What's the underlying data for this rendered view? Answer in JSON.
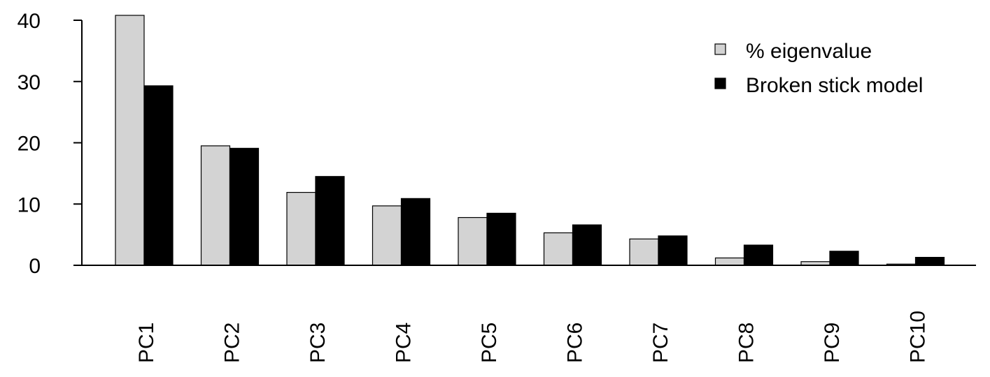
{
  "chart_data": {
    "type": "bar",
    "title": "",
    "xlabel": "",
    "ylabel": "",
    "categories": [
      "PC1",
      "PC2",
      "PC3",
      "PC4",
      "PC5",
      "PC6",
      "PC7",
      "PC8",
      "PC9",
      "PC10"
    ],
    "series": [
      {
        "name": "% eigenvalue",
        "color": "#d3d3d3",
        "values": [
          40.8,
          19.5,
          11.9,
          9.7,
          7.8,
          5.3,
          4.3,
          1.2,
          0.6,
          0.2
        ]
      },
      {
        "name": "Broken stick model",
        "color": "#000000",
        "values": [
          29.3,
          19.1,
          14.5,
          10.9,
          8.5,
          6.6,
          4.8,
          3.3,
          2.3,
          1.3
        ]
      }
    ],
    "ylim": [
      0,
      40
    ],
    "yticks": [
      0,
      10,
      20,
      30,
      40
    ],
    "grid": false,
    "legend_position": "top-right"
  }
}
